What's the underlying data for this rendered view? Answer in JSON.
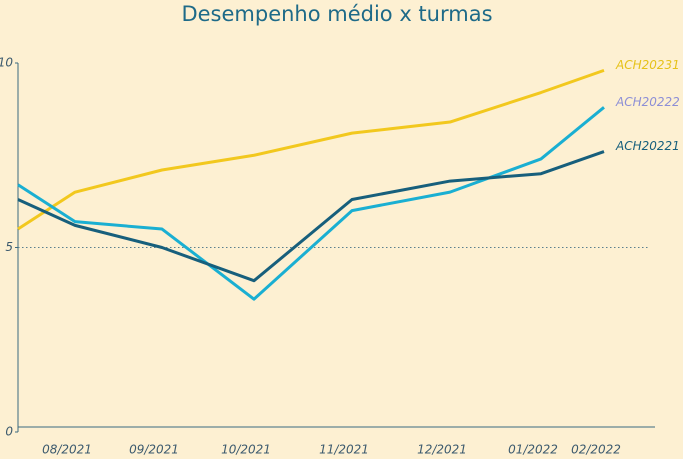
{
  "chart_data": {
    "type": "line",
    "title": "Desempenho médio x turmas",
    "categories": [
      null,
      "08/2021",
      "09/2021",
      "10/2021",
      "11/2021",
      "12/2021",
      "01/2022",
      "02/2022"
    ],
    "series": [
      {
        "name": "ACH20231",
        "color": "#f2c81e",
        "label_color": "#e6c21a",
        "values": [
          5.5,
          6.5,
          7.1,
          7.5,
          8.1,
          8.4,
          9.2,
          9.8
        ]
      },
      {
        "name": "ACH20222",
        "color": "#1aafd2",
        "label_color": "#8d8fd6",
        "values": [
          6.7,
          5.7,
          5.5,
          3.6,
          6.0,
          6.5,
          7.4,
          8.8
        ]
      },
      {
        "name": "ACH20221",
        "color": "#175f7c",
        "label_color": "#175f7c",
        "values": [
          6.3,
          5.6,
          5.0,
          4.1,
          6.3,
          6.8,
          7.0,
          7.6
        ]
      }
    ],
    "ylim": [
      0,
      10
    ],
    "yticks": [
      0,
      5,
      10
    ],
    "grid_values": [
      5
    ]
  }
}
